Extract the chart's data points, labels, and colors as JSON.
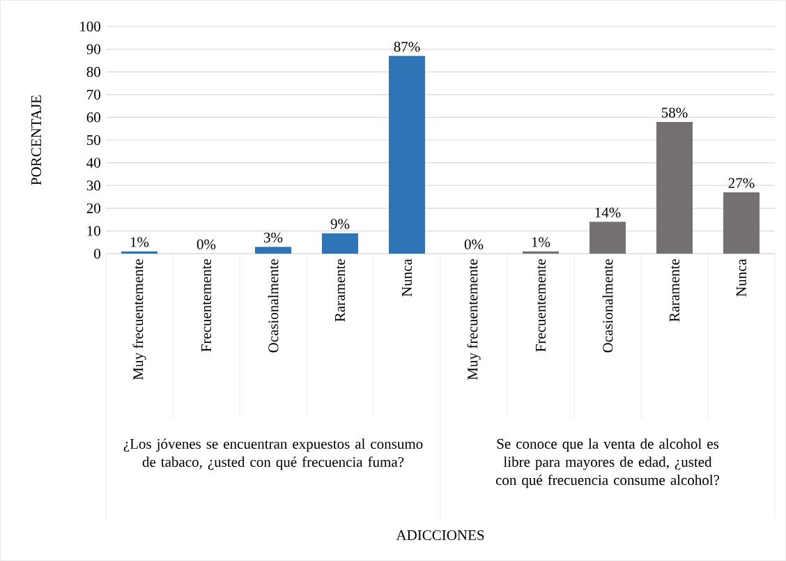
{
  "chart_data": {
    "type": "bar",
    "ylabel": "PORCENTAJE",
    "categories": [
      "Muy frecuentemente",
      "Frecuentemente",
      "Ocasionalmente",
      "Raramente",
      "Nunca",
      "Muy frecuentemente",
      "Frecuentemente",
      "Ocasionalmente",
      "Raramente",
      "Nunca"
    ],
    "values": [
      1,
      0,
      3,
      9,
      87,
      0,
      1,
      14,
      58,
      27
    ],
    "colors": [
      "#2e75b6",
      "#2e75b6",
      "#2e75b6",
      "#2e75b6",
      "#2e75b6",
      "#767171",
      "#767171",
      "#767171",
      "#767171",
      "#767171"
    ],
    "value_labels": [
      "1%",
      "0%",
      "3%",
      "9%",
      "87%",
      "0%",
      "1%",
      "14%",
      "58%",
      "27%"
    ],
    "annotations": [
      "¿Los jóvenes se encuentran expuestos al consumo de tabaco, ¿usted con qué frecuencia fuma?",
      "Se conoce que la venta de alcohol es libre para mayores de edad, ¿usted con qué frecuencia consume alcohol?",
      "ADICCIONES"
    ],
    "ylim": [
      0,
      100
    ],
    "yticks": [
      0,
      10,
      20,
      30,
      40,
      50,
      60,
      70,
      80,
      90,
      100
    ],
    "grid": "y"
  }
}
